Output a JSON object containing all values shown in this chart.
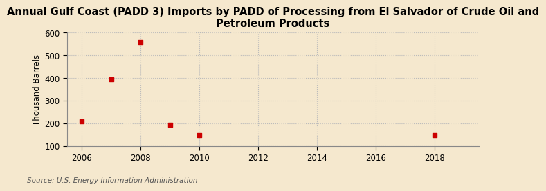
{
  "title": "Annual Gulf Coast (PADD 3) Imports by PADD of Processing from El Salvador of Crude Oil and\nPetroleum Products",
  "ylabel": "Thousand Barrels",
  "source": "Source: U.S. Energy Information Administration",
  "xlim": [
    2005.5,
    2019.5
  ],
  "ylim": [
    100,
    600
  ],
  "yticks": [
    100,
    200,
    300,
    400,
    500,
    600
  ],
  "xticks": [
    2006,
    2008,
    2010,
    2012,
    2014,
    2016,
    2018
  ],
  "data_x": [
    2006,
    2007,
    2008,
    2009,
    2010,
    2018
  ],
  "data_y": [
    210,
    395,
    560,
    195,
    148,
    148
  ],
  "marker_color": "#cc0000",
  "marker": "s",
  "marker_size": 4,
  "bg_color": "#f5e8ce",
  "grid_color": "#bbbbbb",
  "title_fontsize": 10.5,
  "label_fontsize": 8.5,
  "tick_fontsize": 8.5,
  "source_fontsize": 7.5
}
